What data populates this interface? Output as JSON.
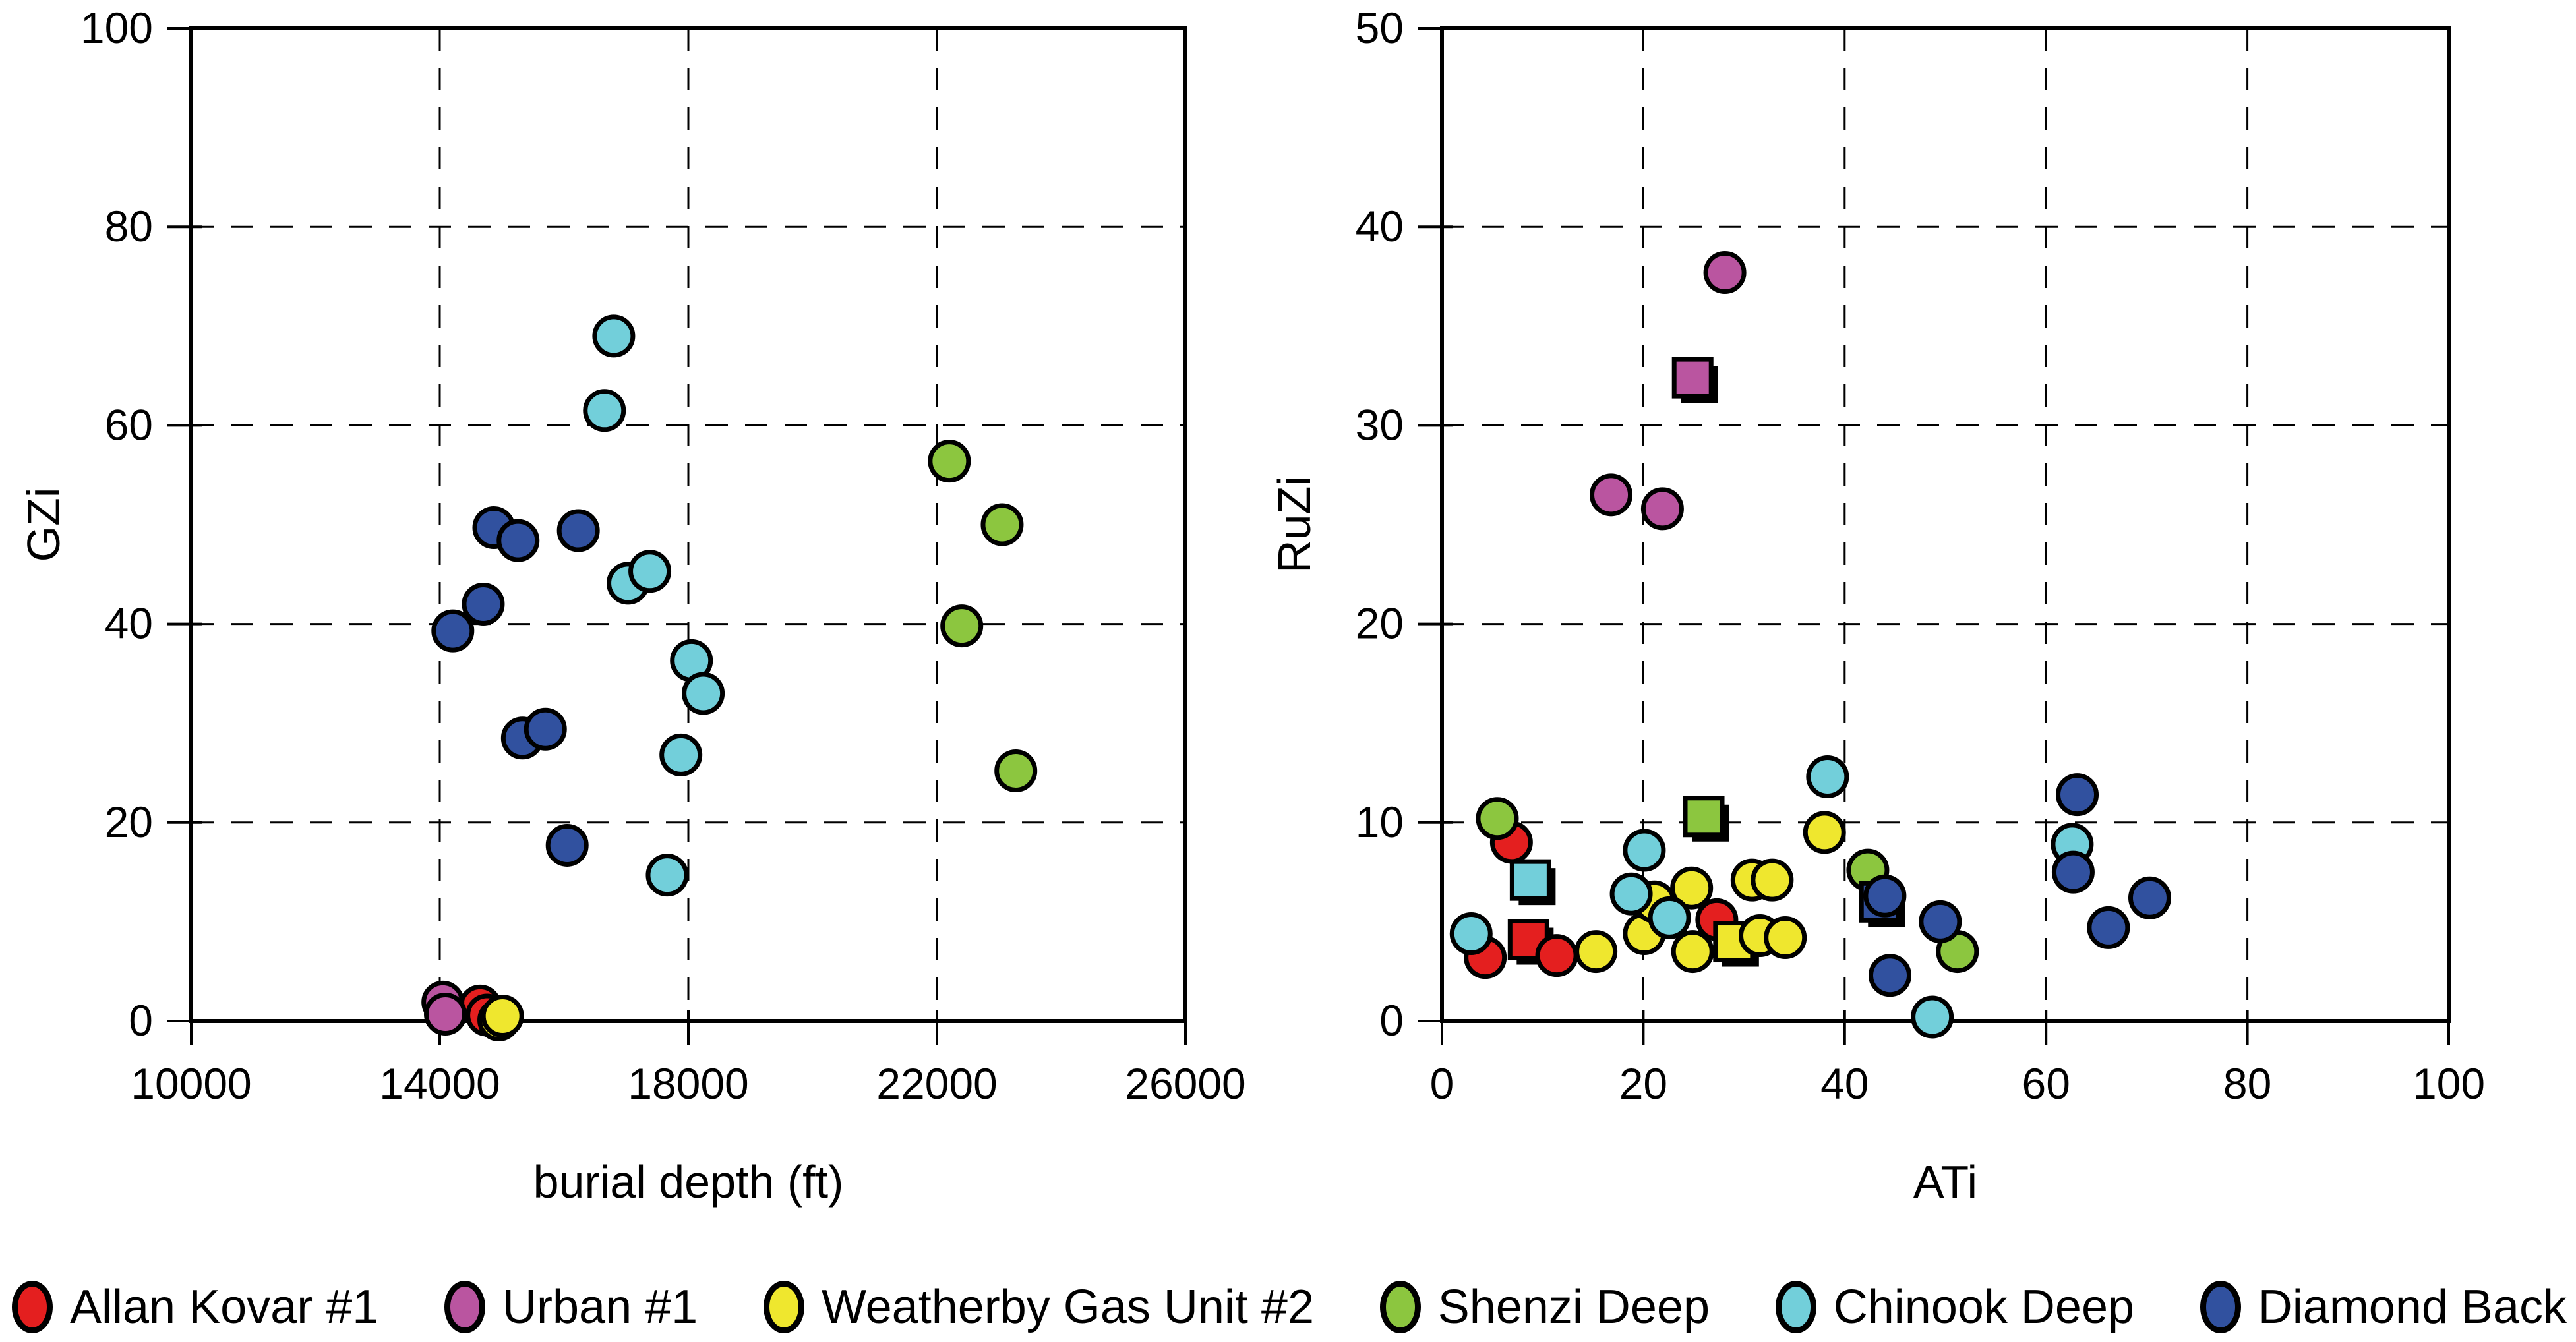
{
  "figure_background": "#ffffff",
  "marker_style": {
    "outline_color": "#000000",
    "outline_width": 7,
    "circle_radius": 29,
    "square_size": 56,
    "square_shadow_offset": 10,
    "square_shadow_color": "#000000"
  },
  "grid_style": {
    "color": "#000000",
    "dash": "34 26",
    "width": 3
  },
  "axis_style": {
    "color": "#000000",
    "border_width": 6,
    "tick_width": 4
  },
  "chart_data": [
    {
      "type": "scatter",
      "title": "",
      "xlabel": "burial depth (ft)",
      "ylabel": "GZi",
      "xlim": [
        10000,
        26000
      ],
      "ylim": [
        0,
        100
      ],
      "xticks": [
        "10000",
        "14000",
        "18000",
        "22000",
        "26000"
      ],
      "yticks": [
        "0",
        "20",
        "40",
        "60",
        "80",
        "100"
      ],
      "xgrid": [
        14000,
        18000,
        22000
      ],
      "ygrid": [
        20,
        40,
        60,
        80
      ],
      "grid": true,
      "legend_position": "none",
      "series": [
        {
          "name": "Allan Kovar #1",
          "color": "#e41f1f",
          "points": [
            [
              14650,
              1.5
            ],
            [
              14760,
              0.6
            ]
          ]
        },
        {
          "name": "Urban #1",
          "color": "#ba55a0",
          "points": [
            [
              14050,
              1.9
            ],
            [
              14090,
              0.7
            ]
          ]
        },
        {
          "name": "Weatherby Gas Unit #2",
          "color": "#efe72e",
          "points": [
            [
              14950,
              0.1
            ],
            [
              15010,
              0.5
            ]
          ]
        },
        {
          "name": "Shenzi Deep",
          "color": "#8cc63f",
          "points": [
            [
              22200,
              56.4
            ],
            [
              23050,
              50.0
            ],
            [
              22400,
              39.8
            ],
            [
              23270,
              25.2
            ]
          ]
        },
        {
          "name": "Chinook Deep",
          "color": "#72cfda",
          "points": [
            [
              16800,
              69.0
            ],
            [
              16650,
              61.5
            ],
            [
              17030,
              44.1
            ],
            [
              17380,
              45.3
            ],
            [
              18050,
              36.3
            ],
            [
              18240,
              33.0
            ],
            [
              17880,
              26.8
            ],
            [
              17660,
              14.7
            ]
          ]
        },
        {
          "name": "Diamond Back",
          "color": "#31519f",
          "points": [
            [
              14870,
              49.7
            ],
            [
              15260,
              48.4
            ],
            [
              16230,
              49.4
            ],
            [
              14700,
              42.0
            ],
            [
              14210,
              39.3
            ],
            [
              15330,
              28.5
            ],
            [
              15700,
              29.4
            ],
            [
              16050,
              17.7
            ]
          ]
        }
      ]
    },
    {
      "type": "scatter",
      "title": "",
      "xlabel": "ATi",
      "ylabel": "RuZi",
      "xlim": [
        0,
        100
      ],
      "ylim": [
        0,
        50
      ],
      "xticks": [
        "0",
        "20",
        "40",
        "60",
        "80",
        "100"
      ],
      "yticks": [
        "0",
        "10",
        "20",
        "30",
        "40",
        "50"
      ],
      "xgrid": [
        20,
        40,
        60,
        80
      ],
      "ygrid": [
        10,
        20,
        30,
        40
      ],
      "grid": true,
      "legend_position": "none",
      "series": [
        {
          "name": "Allan Kovar #1",
          "color": "#e41f1f",
          "square": [
            8.6,
            4.1
          ],
          "points": [
            [
              6.9,
              9.0
            ],
            [
              4.3,
              3.2
            ],
            [
              11.4,
              3.3
            ],
            [
              27.3,
              5.1
            ]
          ]
        },
        {
          "name": "Urban #1",
          "color": "#ba55a0",
          "square": [
            24.9,
            32.4
          ],
          "points": [
            [
              28.1,
              37.7
            ],
            [
              16.8,
              26.5
            ],
            [
              21.9,
              25.8
            ]
          ]
        },
        {
          "name": "Weatherby Gas Unit #2",
          "color": "#efe72e",
          "square": [
            29.0,
            4.0
          ],
          "points": [
            [
              15.3,
              3.5
            ],
            [
              20.1,
              4.4
            ],
            [
              21.1,
              6.0
            ],
            [
              24.8,
              6.7
            ],
            [
              24.9,
              3.5
            ],
            [
              30.8,
              7.1
            ],
            [
              32.8,
              7.1
            ],
            [
              31.6,
              4.3
            ],
            [
              34.1,
              4.2
            ],
            [
              38.0,
              9.5
            ]
          ]
        },
        {
          "name": "Shenzi Deep",
          "color": "#8cc63f",
          "square": [
            26.0,
            10.3
          ],
          "points": [
            [
              5.5,
              10.2
            ],
            [
              42.3,
              7.6
            ],
            [
              51.2,
              3.5
            ]
          ]
        },
        {
          "name": "Chinook Deep",
          "color": "#72cfda",
          "square": [
            8.8,
            7.1
          ],
          "points": [
            [
              2.9,
              4.4
            ],
            [
              18.8,
              6.4
            ],
            [
              20.1,
              8.6
            ],
            [
              22.6,
              5.2
            ],
            [
              38.3,
              12.3
            ],
            [
              48.7,
              0.2
            ],
            [
              62.6,
              8.9
            ]
          ]
        },
        {
          "name": "Diamond Back",
          "color": "#31519f",
          "square": [
            43.5,
            6.0
          ],
          "points": [
            [
              44.0,
              6.3
            ],
            [
              49.5,
              5.0
            ],
            [
              44.5,
              2.3
            ],
            [
              63.1,
              11.4
            ],
            [
              62.7,
              7.5
            ],
            [
              70.3,
              6.2
            ],
            [
              66.2,
              4.7
            ]
          ]
        }
      ]
    }
  ],
  "legend": {
    "items": [
      {
        "label": "Allan Kovar #1",
        "color": "#e41f1f"
      },
      {
        "label": "Urban #1",
        "color": "#ba55a0"
      },
      {
        "label": "Weatherby Gas Unit #2",
        "color": "#efe72e"
      },
      {
        "label": "Shenzi Deep",
        "color": "#8cc63f"
      },
      {
        "label": "Chinook Deep",
        "color": "#72cfda"
      },
      {
        "label": "Diamond Back",
        "color": "#31519f"
      }
    ]
  }
}
